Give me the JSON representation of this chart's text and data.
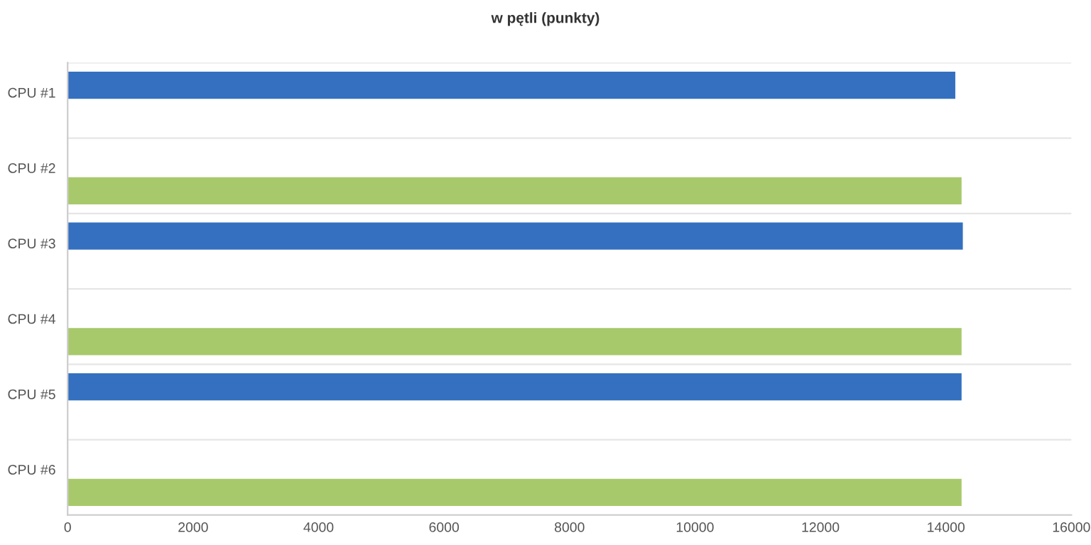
{
  "chart_data": {
    "type": "bar",
    "orientation": "horizontal",
    "title": "w pętli (punkty)",
    "categories": [
      "CPU #1",
      "CPU #2",
      "CPU #3",
      "CPU #4",
      "CPU #5",
      "CPU #6"
    ],
    "series": [
      {
        "color": "#3470bf",
        "values": [
          14150,
          null,
          14270,
          null,
          14250,
          null
        ]
      },
      {
        "color": "#a8c96b",
        "values": [
          null,
          14250,
          null,
          14250,
          null,
          14250
        ]
      }
    ],
    "xlim": [
      0,
      16000
    ],
    "xticks": [
      0,
      2000,
      4000,
      6000,
      8000,
      10000,
      12000,
      14000,
      16000
    ],
    "grid": "y"
  }
}
